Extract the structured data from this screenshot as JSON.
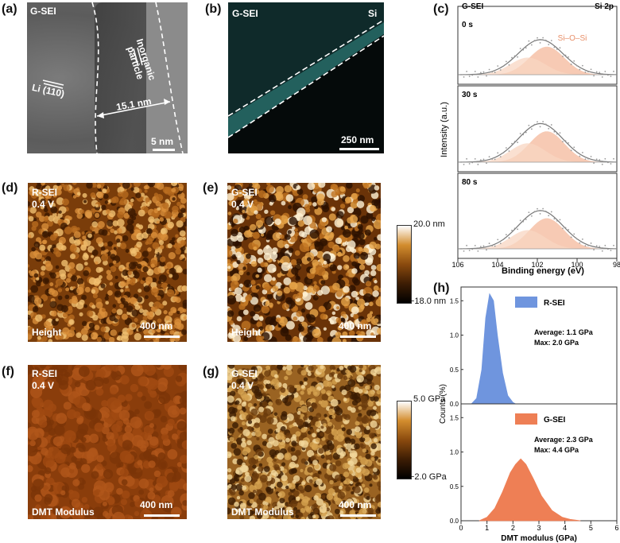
{
  "panels": {
    "a": {
      "label": "(a)",
      "tag": "G-SEI",
      "lattice": "Li (110)",
      "particle": "Inorganic\nparticle",
      "thickness": "15.1 nm",
      "scale": "5 nm"
    },
    "b": {
      "label": "(b)",
      "tag": "G-SEI",
      "element": "Si",
      "scale": "250 nm"
    },
    "c": {
      "label": "(c)",
      "tag": "G-SEI",
      "orbital": "Si 2p",
      "peak": "Si–O–Si",
      "times": [
        "0 s",
        "30 s",
        "80 s"
      ],
      "ylabel": "Intensity (a.u.)",
      "xlabel": "Binding energy (eV)",
      "xticks": [
        "106",
        "104",
        "102",
        "100",
        "98"
      ]
    },
    "d": {
      "label": "(d)",
      "tag": "R-SEI",
      "voltage": "0.4 V",
      "mode": "Height",
      "scale": "400 nm"
    },
    "e": {
      "label": "(e)",
      "tag": "G-SEI",
      "voltage": "0.4 V",
      "mode": "Height",
      "scale": "400 nm"
    },
    "f": {
      "label": "(f)",
      "tag": "R-SEI",
      "voltage": "0.4 V",
      "mode": "DMT Modulus",
      "scale": "400 nm"
    },
    "g": {
      "label": "(g)",
      "tag": "G-SEI",
      "voltage": "0.4 V",
      "mode": "DMT Modulus",
      "scale": "400 nm"
    },
    "h": {
      "label": "(h)"
    }
  },
  "colorbars": {
    "height": {
      "max": "20.0 nm",
      "min": "−18.0 nm"
    },
    "modulus": {
      "max": "5.0 GPa",
      "min": "−2.0 GPa"
    }
  },
  "chart_data": [
    {
      "type": "area",
      "title": "",
      "xlabel": "DMT modulus (GPa)",
      "ylabel": "Counts (%)",
      "xlim": [
        0,
        6
      ],
      "x_ticks": [
        "0",
        "1",
        "2",
        "3",
        "4",
        "5",
        "6"
      ],
      "series": [
        {
          "name": "R-SEI",
          "color": "#6f95de",
          "ylim": [
            0,
            1.7
          ],
          "y_ticks": [
            "0.0",
            "0.5",
            "1.0",
            "1.5"
          ],
          "annotation_avg": "Average: 1.1 GPa",
          "annotation_max": "Max: 2.0 GPa",
          "x": [
            0.4,
            0.6,
            0.8,
            0.95,
            1.1,
            1.25,
            1.4,
            1.6,
            1.8,
            2.0,
            2.1
          ],
          "values": [
            0.0,
            0.08,
            0.5,
            1.25,
            1.6,
            1.5,
            1.0,
            0.45,
            0.12,
            0.02,
            0.0
          ]
        },
        {
          "name": "G-SEI",
          "color": "#ee7f55",
          "ylim": [
            0,
            1.7
          ],
          "y_ticks": [
            "0.0",
            "0.5",
            "1.0",
            "1.5"
          ],
          "annotation_avg": "Average: 2.3 GPa",
          "annotation_max": "Max: 4.4 GPa",
          "x": [
            0.7,
            1.0,
            1.3,
            1.6,
            1.9,
            2.1,
            2.3,
            2.5,
            2.8,
            3.1,
            3.5,
            3.9,
            4.2,
            4.6
          ],
          "values": [
            0.0,
            0.05,
            0.18,
            0.42,
            0.7,
            0.82,
            0.9,
            0.82,
            0.6,
            0.36,
            0.15,
            0.05,
            0.02,
            0.0
          ]
        }
      ]
    }
  ]
}
